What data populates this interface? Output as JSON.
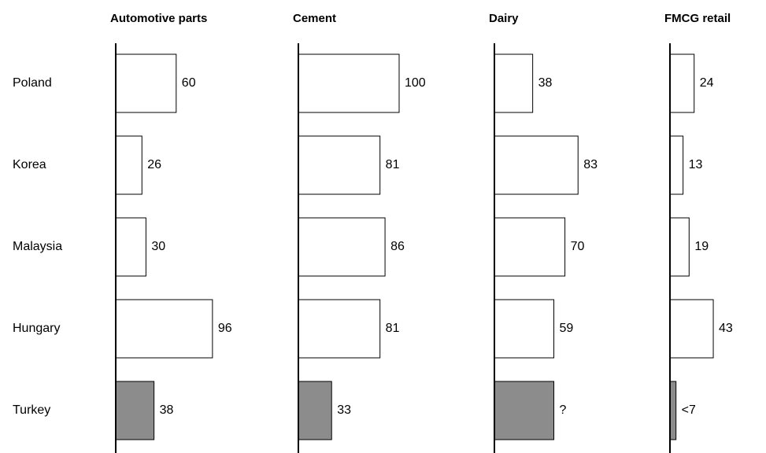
{
  "chart_data": {
    "type": "bar",
    "categories": [
      "Poland",
      "Korea",
      "Malaysia",
      "Hungary",
      "Turkey"
    ],
    "colors": [
      "#ffffff",
      "#ffffff",
      "#ffffff",
      "#ffffff",
      "#8c8c8c"
    ],
    "xlim": [
      0,
      100
    ],
    "series": [
      {
        "name": "Automotive parts",
        "values": [
          60,
          26,
          30,
          96,
          38
        ]
      },
      {
        "name": "Cement",
        "values": [
          100,
          81,
          86,
          81,
          33
        ]
      },
      {
        "name": "Dairy",
        "values": [
          38,
          83,
          70,
          59,
          59
        ],
        "value_labels": [
          "38",
          "83",
          "70",
          "59",
          "?"
        ]
      },
      {
        "name": "FMCG retail",
        "values": [
          24,
          13,
          19,
          43,
          6
        ],
        "value_labels": [
          "24",
          "13",
          "19",
          "43",
          "<7"
        ]
      }
    ]
  }
}
